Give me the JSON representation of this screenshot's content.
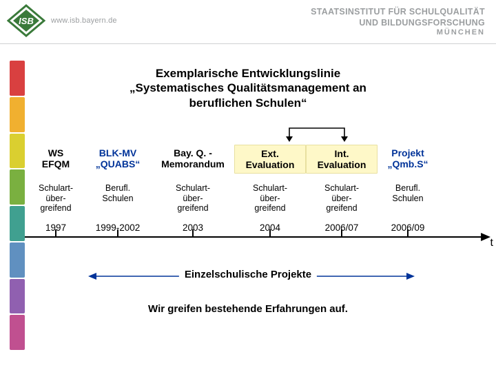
{
  "header": {
    "url": "www.isb.bayern.de",
    "institute_line1": "STAATSINSTITUT FÜR SCHULQUALITÄT",
    "institute_line2": "UND BILDUNGSFORSCHUNG",
    "city": "MÜNCHEN",
    "logo_text": "ISB",
    "logo_green": "#3a7a3a",
    "logo_gray": "#9b9ea0"
  },
  "side_bar_colors": [
    "#d94040",
    "#f0b030",
    "#dacf30",
    "#7ab040",
    "#40a090",
    "#6090c0",
    "#9060b0",
    "#c05090"
  ],
  "title": {
    "line1": "Exemplarische Entwicklungslinie",
    "line2": "„Systematisches Qualitätsmanagement an",
    "line3": "beruflichen Schulen“"
  },
  "timeline": {
    "columns": [
      {
        "id": "ws-efqm",
        "head_l1": "WS",
        "head_l2": "EFQM",
        "head_color": "#000000",
        "highlight": false,
        "sub_l1": "Schulart-",
        "sub_l2": "über-",
        "sub_l3": "greifend",
        "year": "1997"
      },
      {
        "id": "blk-mv",
        "head_l1": "BLK-MV",
        "head_l2": "„QUABS“",
        "head_color": "#003399",
        "highlight": false,
        "sub_l1": "Berufl.",
        "sub_l2": "Schulen",
        "sub_l3": "",
        "year": "1999-2002"
      },
      {
        "id": "bay-q",
        "head_l1": "Bay. Q. -",
        "head_l2": "Memorandum",
        "head_color": "#000000",
        "highlight": false,
        "sub_l1": "Schulart-",
        "sub_l2": "über-",
        "sub_l3": "greifend",
        "year": "2003"
      },
      {
        "id": "ext-eval",
        "head_l1": "Ext.",
        "head_l2": "Evaluation",
        "head_color": "#000000",
        "highlight": true,
        "sub_l1": "Schulart-",
        "sub_l2": "über-",
        "sub_l3": "greifend",
        "year": "2004"
      },
      {
        "id": "int-eval",
        "head_l1": "Int.",
        "head_l2": "Evaluation",
        "head_color": "#000000",
        "highlight": true,
        "sub_l1": "Schulart-",
        "sub_l2": "über-",
        "sub_l3": "greifend",
        "year": "2006/07"
      },
      {
        "id": "projekt-qmbs",
        "head_l1": "Projekt",
        "head_l2": "„Qmb.S“",
        "head_color": "#003399",
        "highlight": false,
        "sub_l1": "Berufl.",
        "sub_l2": "Schulen",
        "sub_l3": "",
        "year": "2006/09"
      }
    ],
    "axis_color": "#000000",
    "axis_letter": "t",
    "feedback_arrow_color": "#000000"
  },
  "span_label": "Einzelschulische Projekte",
  "span_arrow_color": "#003399",
  "closing": "Wir greifen bestehende Erfahrungen auf."
}
